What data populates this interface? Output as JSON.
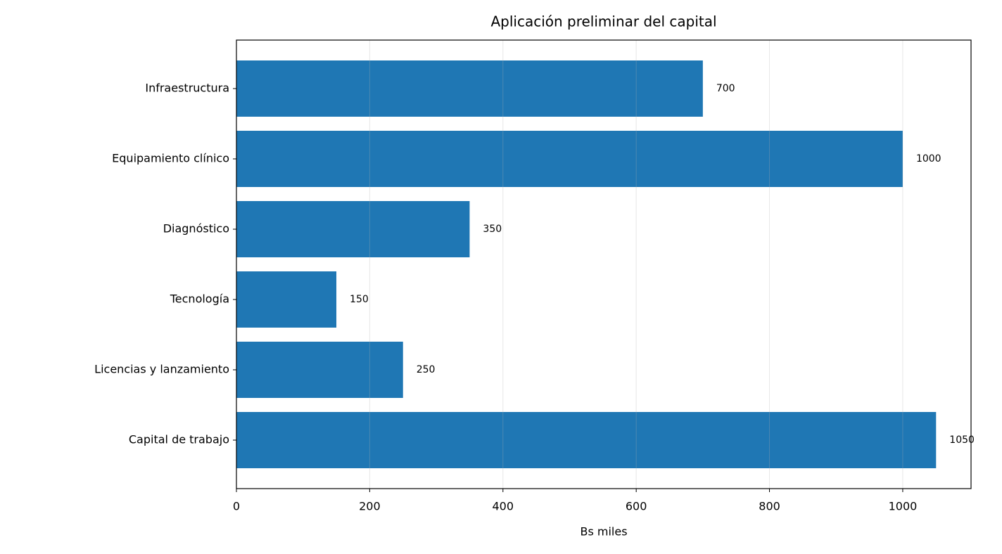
{
  "chart_data": {
    "type": "bar",
    "orientation": "horizontal",
    "title": "Aplicación preliminar del capital",
    "x_label": "Bs miles",
    "categories": [
      "Infraestructura",
      "Equipamiento clínico",
      "Diagnóstico",
      "Tecnología",
      "Licencias y lanzamiento",
      "Capital de trabajo"
    ],
    "values": [
      700,
      1000,
      350,
      150,
      250,
      1050
    ],
    "color": "#1f77b4",
    "xlim": [
      0,
      1102.5
    ],
    "xticks": [
      0,
      200,
      400,
      600,
      800,
      1000
    ],
    "grid": true
  }
}
